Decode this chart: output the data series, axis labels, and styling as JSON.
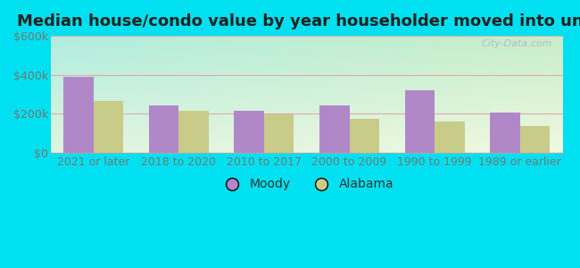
{
  "title": "Median house/condo value by year householder moved into unit",
  "categories": [
    "2021 or later",
    "2018 to 2020",
    "2010 to 2017",
    "2000 to 2009",
    "1990 to 1999",
    "1989 or earlier"
  ],
  "moody_values": [
    390000,
    245000,
    215000,
    245000,
    320000,
    205000
  ],
  "alabama_values": [
    265000,
    215000,
    195000,
    175000,
    158000,
    135000
  ],
  "moody_color": "#b088c8",
  "alabama_color": "#c8cc88",
  "ylim": [
    0,
    600000
  ],
  "yticks": [
    0,
    200000,
    400000,
    600000
  ],
  "ytick_labels": [
    "$0",
    "$200k",
    "$400k",
    "$600k"
  ],
  "bg_topleft": "#b0ede0",
  "bg_topright": "#c8eec8",
  "bg_bottomleft": "#e0f5e0",
  "bg_bottomright": "#f0f8e0",
  "outer_color": "#00e0f0",
  "watermark": "City-Data.com",
  "bar_width": 0.35,
  "legend_labels": [
    "Moody",
    "Alabama"
  ],
  "tick_color": "#777777",
  "grid_color": "#ddaaaa",
  "title_fontsize": 13,
  "tick_fontsize": 9
}
